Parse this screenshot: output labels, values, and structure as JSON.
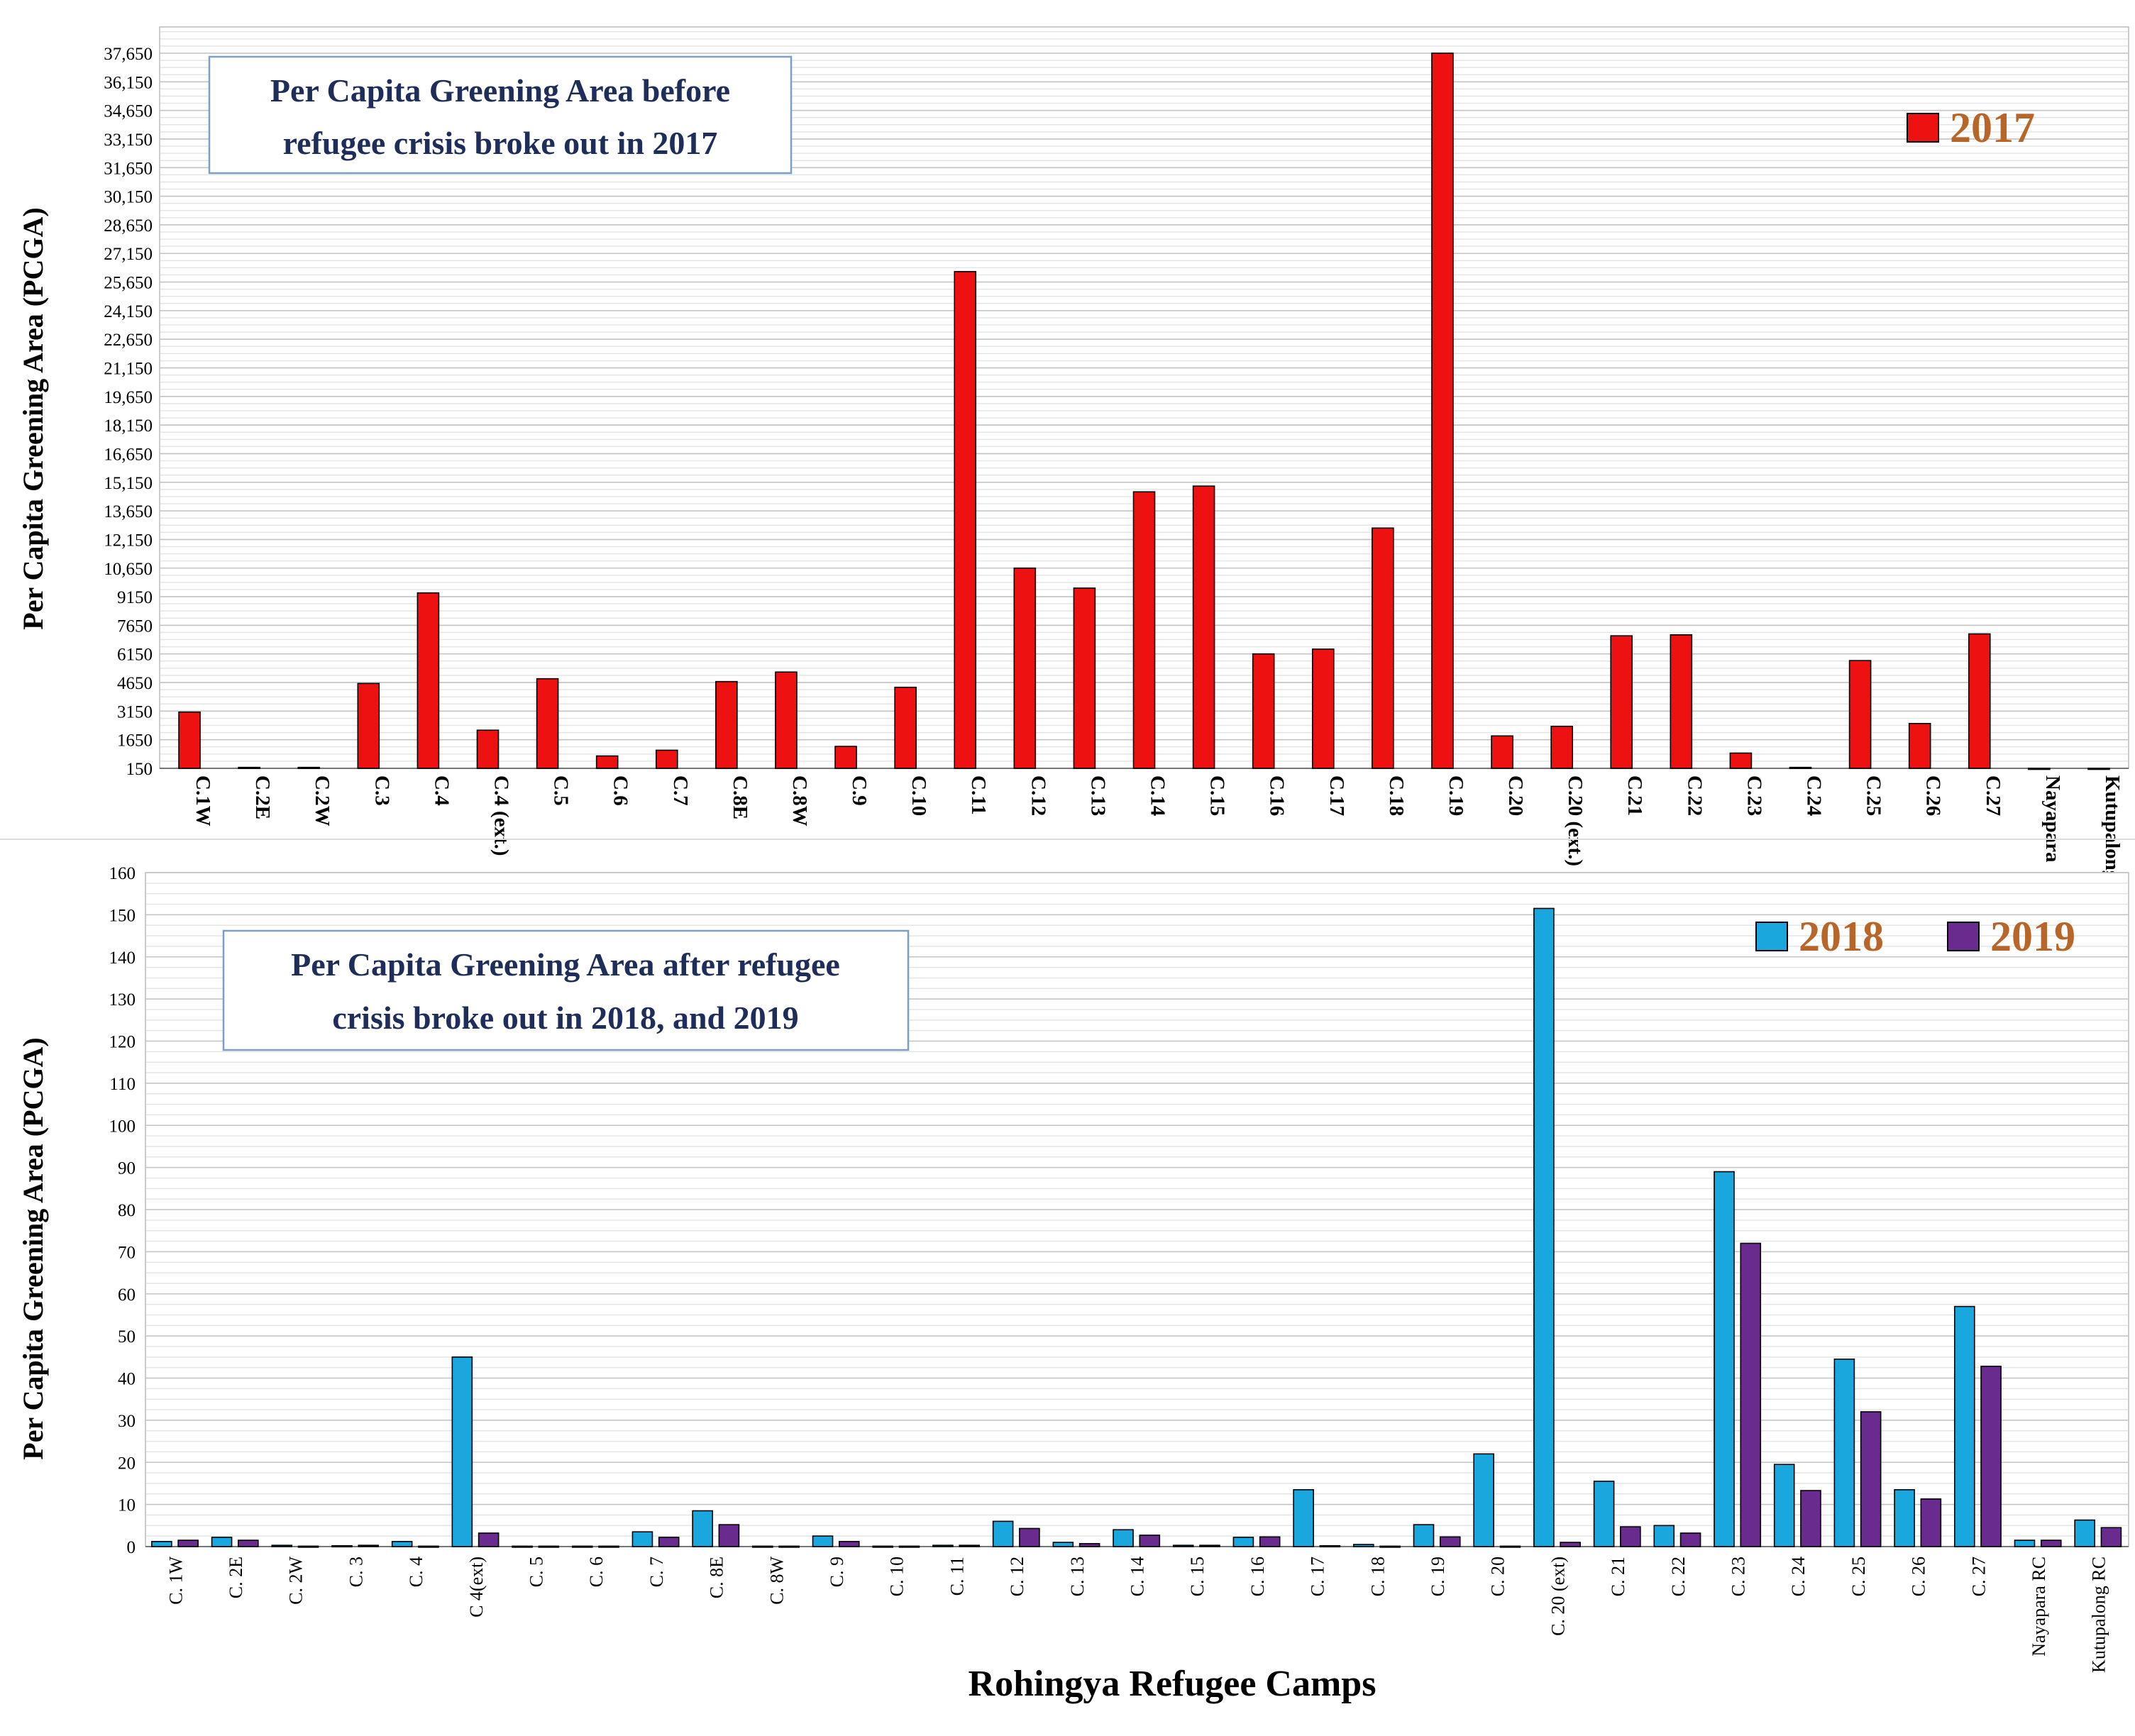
{
  "colors": {
    "c2017": "#ee1111",
    "c2018": "#1aa7dd",
    "c2019": "#6a2b8e",
    "title": "#1f2d5a",
    "legend": "#b8652a"
  },
  "chart_data": [
    {
      "type": "bar",
      "title": "Per Capita Greening Area before refugee crisis broke out in 2017",
      "title_lines": [
        "Per Capita  Greening Area before",
        "refugee crisis broke out in 2017"
      ],
      "ylabel": "Per Capita  Greening Area (PCGA)",
      "xlabel": "",
      "ylim": [
        150,
        37650
      ],
      "yticks": [
        "150",
        "1650",
        "3150",
        "4650",
        "6150",
        "7650",
        "9150",
        "10,650",
        "12,150",
        "13,650",
        "15,150",
        "16,650",
        "18,150",
        "19,650",
        "21,150",
        "22,650",
        "24,150",
        "25,650",
        "27,150",
        "28,650",
        "30,150",
        "31,650",
        "33,150",
        "34,650",
        "36,150",
        "37,650"
      ],
      "ytick_values": [
        150,
        1650,
        3150,
        4650,
        6150,
        7650,
        9150,
        10650,
        12150,
        13650,
        15150,
        16650,
        18150,
        19650,
        21150,
        22650,
        24150,
        25650,
        27150,
        28650,
        30150,
        31650,
        33150,
        34650,
        36150,
        37650
      ],
      "categories": [
        "C.1W",
        "C.2E",
        "C.2W",
        "C.3",
        "C.4",
        "C.4 (ext.)",
        "C.5",
        "C.6",
        "C.7",
        "C.8E",
        "C.8W",
        "C.9",
        "C.10",
        "C.11",
        "C.12",
        "C.13",
        "C.14",
        "C.15",
        "C.16",
        "C.17",
        "C.18",
        "C.19",
        "C.20",
        "C.20 (ext.)",
        "C.21",
        "C.22",
        "C.23",
        "C.24",
        "C.25",
        "C.26",
        "C.27",
        "Nayapara",
        "Kutupalong RC"
      ],
      "series": [
        {
          "name": "2017",
          "values": [
            3100,
            200,
            200,
            4600,
            9350,
            2150,
            4850,
            800,
            1100,
            4700,
            5200,
            1300,
            4400,
            26200,
            10650,
            9600,
            14650,
            14950,
            6150,
            6400,
            12750,
            37650,
            1850,
            2350,
            7100,
            7150,
            950,
            200,
            5800,
            2500,
            7200,
            150,
            150
          ]
        }
      ]
    },
    {
      "type": "bar",
      "title": "Per Capita Greening Area after refugee crisis broke out in 2018, and 2019",
      "title_lines": [
        "Per Capita  Greening Area after refugee",
        "crisis broke out in 2018, and 2019"
      ],
      "ylabel": "Per Capita  Greening Area (PCGA)",
      "xlabel": "Rohingya Refugee Camps",
      "ylim": [
        0,
        160
      ],
      "yticks": [
        "0",
        "10",
        "20",
        "30",
        "40",
        "50",
        "60",
        "70",
        "80",
        "90",
        "100",
        "110",
        "120",
        "130",
        "140",
        "150",
        "160"
      ],
      "ytick_values": [
        0,
        10,
        20,
        30,
        40,
        50,
        60,
        70,
        80,
        90,
        100,
        110,
        120,
        130,
        140,
        150,
        160
      ],
      "categories": [
        "C. 1W",
        "C. 2E",
        "C. 2W",
        "C. 3",
        "C. 4",
        "C 4(ext)",
        "C. 5",
        "C. 6",
        "C. 7",
        "C. 8E",
        "C. 8W",
        "C. 9",
        "C. 10",
        "C. 11",
        "C. 12",
        "C. 13",
        "C. 14",
        "C. 15",
        "C. 16",
        "C. 17",
        "C. 18",
        "C. 19",
        "C. 20",
        "C. 20 (ext)",
        "C. 21",
        "C. 22",
        "C. 23",
        "C. 24",
        "C. 25",
        "C. 26",
        "C. 27",
        "Nayapara RC",
        "Kutupalong RC"
      ],
      "series": [
        {
          "name": "2018",
          "values": [
            1.2,
            2.2,
            0.3,
            0.2,
            1.2,
            45,
            0.1,
            0.1,
            3.5,
            8.5,
            0.1,
            2.5,
            0.1,
            0.3,
            6,
            1,
            4,
            0.3,
            2.2,
            13.5,
            0.5,
            5.2,
            22,
            151.5,
            15.5,
            5,
            89,
            19.5,
            44.5,
            13.5,
            57,
            1.5,
            6.3
          ]
        },
        {
          "name": "2019",
          "values": [
            1.5,
            1.5,
            0.1,
            0.3,
            0.1,
            3.2,
            0.1,
            0.1,
            2.2,
            5.2,
            0.1,
            1.2,
            0.1,
            0.3,
            4.3,
            0.7,
            2.7,
            0.3,
            2.3,
            0.2,
            0.1,
            2.3,
            0.1,
            1,
            4.7,
            3.2,
            72,
            13.3,
            32,
            11.3,
            42.8,
            1.5,
            4.5
          ]
        }
      ]
    }
  ]
}
